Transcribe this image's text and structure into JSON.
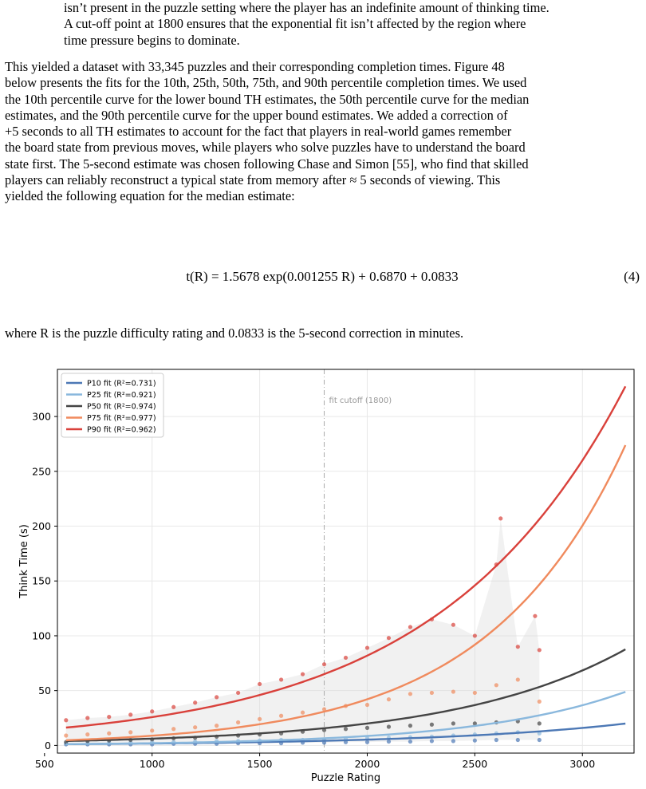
{
  "text": {
    "top_lines": [
      "isn’t present in the puzzle setting where the player has an indefinite amount of thinking time.",
      "A cut-off point at 1800 ensures that the exponential fit isn’t affected by the region where",
      "time pressure begins to dominate."
    ],
    "main_lines": [
      "This yielded a dataset with 33,345 puzzles and their corresponding completion times. Figure 48",
      "below presents the fits for the 10th, 25th, 50th, 75th, and 90th percentile completion times. We used",
      "the 10th percentile curve for the lower bound TH estimates, the 50th percentile curve for the median",
      "estimates, and the 90th percentile curve for the upper bound estimates. We added a correction of",
      "+5 seconds to all TH estimates to account for the fact that players in real-world games remember",
      "the board state from previous moves, while players who solve puzzles have to understand the board",
      "state first. The 5-second estimate was chosen following Chase and Simon [55], who find that skilled",
      "players can reliably reconstruct a typical state from memory after ≈ 5 seconds of viewing. This",
      "yielded the following equation for the median estimate:"
    ],
    "equation": "t(R) = 1.5678 exp(0.001255 R) + 0.6870 + 0.0833",
    "equation_number": "(4)",
    "where_line": "where R is the puzzle difficulty rating and 0.0833 is the 5-second correction in minutes."
  },
  "chart_data": {
    "type": "line",
    "xlabel": "Puzzle Rating",
    "ylabel": "Think Time (s)",
    "xlim": [
      560,
      3240
    ],
    "ylim": [
      -7,
      343
    ],
    "xticks": [
      500,
      1000,
      1500,
      2000,
      2500,
      3000
    ],
    "yticks": [
      0,
      50,
      100,
      150,
      200,
      250,
      300
    ],
    "grid": true,
    "legend_position": "top-left",
    "cutoff": {
      "x": 1800,
      "label": "fit cutoff (1800)",
      "color": "#aaaaaa"
    },
    "fit_x_range": [
      600,
      3200
    ],
    "series": [
      {
        "name": "P10 fit (R²=0.731)",
        "color": "#4c78b5",
        "fit": {
          "a": 0.58,
          "b": 0.001105,
          "c": 0.0
        },
        "points": [
          [
            600,
            1
          ],
          [
            700,
            1
          ],
          [
            800,
            1
          ],
          [
            900,
            1
          ],
          [
            1000,
            1
          ],
          [
            1100,
            1.5
          ],
          [
            1200,
            1.5
          ],
          [
            1300,
            1.5
          ],
          [
            1400,
            2
          ],
          [
            1500,
            2
          ],
          [
            1600,
            2
          ],
          [
            1700,
            2.5
          ],
          [
            1800,
            2.5
          ],
          [
            1900,
            3
          ],
          [
            2000,
            3
          ],
          [
            2100,
            3.5
          ],
          [
            2200,
            3.5
          ],
          [
            2300,
            4
          ],
          [
            2400,
            4
          ],
          [
            2500,
            4.5
          ],
          [
            2600,
            5
          ],
          [
            2700,
            5
          ],
          [
            2800,
            5
          ]
        ]
      },
      {
        "name": "P25 fit (R²=0.921)",
        "color": "#8ab8dd",
        "fit": {
          "a": 0.48,
          "b": 0.001445,
          "c": 0.0
        },
        "points": [
          [
            600,
            2
          ],
          [
            700,
            2
          ],
          [
            800,
            2.5
          ],
          [
            900,
            2.5
          ],
          [
            1000,
            3
          ],
          [
            1100,
            3
          ],
          [
            1200,
            3.5
          ],
          [
            1300,
            4
          ],
          [
            1400,
            4
          ],
          [
            1500,
            4.5
          ],
          [
            1600,
            5
          ],
          [
            1700,
            5
          ],
          [
            1800,
            5.5
          ],
          [
            1900,
            6
          ],
          [
            2000,
            6.5
          ],
          [
            2100,
            7
          ],
          [
            2200,
            7.5
          ],
          [
            2300,
            8
          ],
          [
            2400,
            9
          ],
          [
            2500,
            10
          ],
          [
            2600,
            11
          ],
          [
            2700,
            12
          ],
          [
            2800,
            11
          ]
        ]
      },
      {
        "name": "P50 fit (R²=0.974)",
        "color": "#444444",
        "fit": {
          "a": 1.5678,
          "b": 0.001255,
          "c": 0.687
        },
        "points": [
          [
            600,
            3
          ],
          [
            700,
            4
          ],
          [
            800,
            4.5
          ],
          [
            900,
            5
          ],
          [
            1000,
            5.5
          ],
          [
            1100,
            6.5
          ],
          [
            1200,
            7
          ],
          [
            1300,
            8
          ],
          [
            1400,
            9
          ],
          [
            1500,
            10
          ],
          [
            1600,
            11
          ],
          [
            1700,
            12.5
          ],
          [
            1800,
            14
          ],
          [
            1900,
            15
          ],
          [
            2000,
            16
          ],
          [
            2100,
            17
          ],
          [
            2200,
            18
          ],
          [
            2300,
            19
          ],
          [
            2400,
            20
          ],
          [
            2500,
            20
          ],
          [
            2600,
            21
          ],
          [
            2700,
            22
          ],
          [
            2800,
            20
          ]
        ]
      },
      {
        "name": "P75 fit (R²=0.977)",
        "color": "#f08a5d",
        "fit": {
          "a": 1.86,
          "b": 0.00156,
          "c": 0.0
        },
        "points": [
          [
            600,
            9
          ],
          [
            700,
            10
          ],
          [
            800,
            11
          ],
          [
            900,
            12
          ],
          [
            1000,
            13.5
          ],
          [
            1100,
            15
          ],
          [
            1200,
            16.5
          ],
          [
            1300,
            18
          ],
          [
            1400,
            21
          ],
          [
            1500,
            24
          ],
          [
            1600,
            27
          ],
          [
            1700,
            30
          ],
          [
            1800,
            33
          ],
          [
            1900,
            36
          ],
          [
            2000,
            37
          ],
          [
            2100,
            42
          ],
          [
            2200,
            47
          ],
          [
            2300,
            48
          ],
          [
            2400,
            49
          ],
          [
            2500,
            48
          ],
          [
            2600,
            55
          ],
          [
            2700,
            60
          ],
          [
            2800,
            40
          ]
        ]
      },
      {
        "name": "P90 fit (R²=0.962)",
        "color": "#d9413b",
        "fit": {
          "a": 8.13,
          "b": 0.001155,
          "c": 0.0
        },
        "points": [
          [
            600,
            23
          ],
          [
            700,
            25
          ],
          [
            800,
            26
          ],
          [
            900,
            28
          ],
          [
            1000,
            31
          ],
          [
            1100,
            35
          ],
          [
            1200,
            39
          ],
          [
            1300,
            44
          ],
          [
            1400,
            48
          ],
          [
            1500,
            56
          ],
          [
            1600,
            60
          ],
          [
            1700,
            65
          ],
          [
            1800,
            74
          ],
          [
            1900,
            80
          ],
          [
            2000,
            89
          ],
          [
            2100,
            98
          ],
          [
            2200,
            108
          ],
          [
            2300,
            115
          ],
          [
            2400,
            110
          ],
          [
            2500,
            100
          ],
          [
            2600,
            165
          ],
          [
            2620,
            207
          ],
          [
            2700,
            90
          ],
          [
            2780,
            118
          ],
          [
            2800,
            87
          ]
        ]
      }
    ]
  }
}
